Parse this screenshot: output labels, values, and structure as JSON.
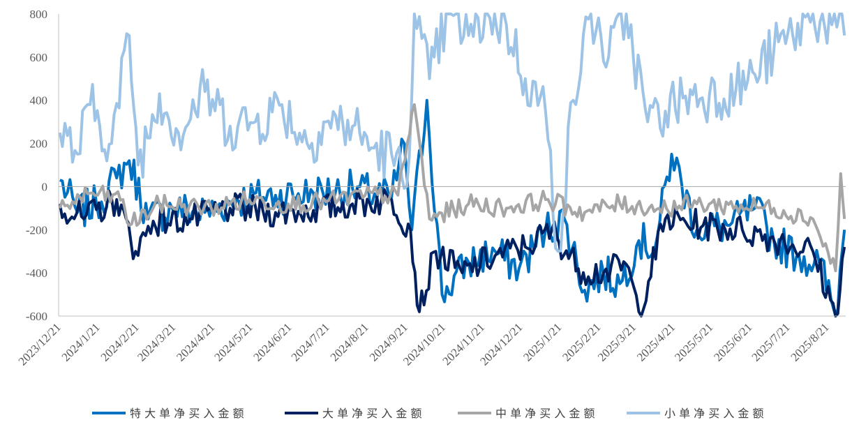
{
  "chart_data": {
    "type": "line",
    "title": "",
    "xlabel": "",
    "ylabel": "",
    "ylim": [
      -600,
      800
    ],
    "yticks": [
      -600,
      -400,
      -200,
      0,
      200,
      400,
      600,
      800
    ],
    "ytick_labels": [
      "-600",
      "-400",
      "-200",
      "0",
      "200",
      "400",
      "600",
      "800"
    ],
    "x_tick_labels": [
      "2023/12/21",
      "2024/1/21",
      "2024/2/21",
      "2024/3/21",
      "2024/4/21",
      "2024/5/21",
      "2024/6/21",
      "2024/7/21",
      "2024/8/21",
      "2024/9/21",
      "2024/10/21",
      "2024/11/21",
      "2024/12/21",
      "2025/1/21",
      "2025/2/21",
      "2025/3/21",
      "2025/4/21",
      "2025/5/21",
      "2025/6/21",
      "2025/7/21",
      "2025/8/21"
    ],
    "x_range": [
      "2023/12/21",
      "2025/9/5"
    ],
    "grid": false,
    "legend_position": "bottom",
    "series": [
      {
        "name": "特大单净买入金额",
        "color": "#0070C0",
        "description": "daily, mostly -200..50 before 2024/9/21; -600..450 after"
      },
      {
        "name": "大单净买入金额",
        "color": "#002060",
        "description": "daily, mostly -200..0 before 2024/9/21; -600..0 after"
      },
      {
        "name": "中单净买入金额",
        "color": "#A6A6A6",
        "description": "daily, mostly -150..0, peak ~380 near 2024/10/1"
      },
      {
        "name": "小单净买入金额",
        "color": "#9DC3E6",
        "description": "daily, mostly 0..450 before 2024/9/21; 0..800+ after"
      }
    ],
    "anchors": {
      "特大单净买入金额": [
        [
          "2023/12/22",
          30
        ],
        [
          "2024/1/5",
          -120
        ],
        [
          "2024/1/20",
          -80
        ],
        [
          "2024/2/5",
          40
        ],
        [
          "2024/2/15",
          120
        ],
        [
          "2024/3/1",
          -150
        ],
        [
          "2024/3/20",
          -100
        ],
        [
          "2024/4/15",
          -120
        ],
        [
          "2024/5/10",
          -60
        ],
        [
          "2024/6/10",
          -40
        ],
        [
          "2024/7/10",
          -30
        ],
        [
          "2024/8/10",
          -10
        ],
        [
          "2024/9/10",
          -50
        ],
        [
          "2024/9/20",
          200
        ],
        [
          "2024/9/26",
          -200
        ],
        [
          "2024/10/8",
          400
        ],
        [
          "2024/10/20",
          -500
        ],
        [
          "2024/11/10",
          -350
        ],
        [
          "2024/12/1",
          -300
        ],
        [
          "2024/12/20",
          -380
        ],
        [
          "2025/1/10",
          -200
        ],
        [
          "2025/1/25",
          -150
        ],
        [
          "2025/2/10",
          -480
        ],
        [
          "2025/2/25",
          -400
        ],
        [
          "2025/3/10",
          -450
        ],
        [
          "2025/3/25",
          -250
        ],
        [
          "2025/4/7",
          -280
        ],
        [
          "2025/4/20",
          150
        ],
        [
          "2025/5/10",
          -200
        ],
        [
          "2025/6/5",
          -180
        ],
        [
          "2025/6/25",
          -100
        ],
        [
          "2025/7/10",
          -250
        ],
        [
          "2025/7/30",
          -320
        ],
        [
          "2025/8/15",
          -350
        ],
        [
          "2025/8/28",
          -600
        ],
        [
          "2025/9/4",
          -200
        ]
      ],
      "大单净买入金额": [
        [
          "2023/12/22",
          -80
        ],
        [
          "2024/1/10",
          -150
        ],
        [
          "2024/2/5",
          -60
        ],
        [
          "2024/2/20",
          -300
        ],
        [
          "2024/3/5",
          -160
        ],
        [
          "2024/4/5",
          -150
        ],
        [
          "2024/5/5",
          -100
        ],
        [
          "2024/6/10",
          -120
        ],
        [
          "2024/7/10",
          -110
        ],
        [
          "2024/8/10",
          -80
        ],
        [
          "2024/9/10",
          -60
        ],
        [
          "2024/9/25",
          -200
        ],
        [
          "2024/10/2",
          -580
        ],
        [
          "2024/10/15",
          -300
        ],
        [
          "2024/11/5",
          -400
        ],
        [
          "2024/12/1",
          -320
        ],
        [
          "2024/12/25",
          -280
        ],
        [
          "2025/1/15",
          -200
        ],
        [
          "2025/2/5",
          -380
        ],
        [
          "2025/2/25",
          -400
        ],
        [
          "2025/3/15",
          -360
        ],
        [
          "2025/3/25",
          -580
        ],
        [
          "2025/4/15",
          -150
        ],
        [
          "2025/5/15",
          -180
        ],
        [
          "2025/6/15",
          -200
        ],
        [
          "2025/7/15",
          -250
        ],
        [
          "2025/8/10",
          -300
        ],
        [
          "2025/8/28",
          -600
        ],
        [
          "2025/9/4",
          -280
        ]
      ],
      "中单净买入金额": [
        [
          "2023/12/22",
          -100
        ],
        [
          "2024/1/15",
          -30
        ],
        [
          "2024/2/10",
          -60
        ],
        [
          "2024/2/15",
          -180
        ],
        [
          "2024/3/10",
          -80
        ],
        [
          "2024/4/20",
          -100
        ],
        [
          "2024/5/20",
          -60
        ],
        [
          "2024/6/20",
          -80
        ],
        [
          "2024/7/20",
          -70
        ],
        [
          "2024/8/20",
          -40
        ],
        [
          "2024/9/15",
          -40
        ],
        [
          "2024/9/28",
          380
        ],
        [
          "2024/10/10",
          -150
        ],
        [
          "2024/11/10",
          -80
        ],
        [
          "2024/12/10",
          -100
        ],
        [
          "2025/1/10",
          -60
        ],
        [
          "2025/2/10",
          -120
        ],
        [
          "2025/3/10",
          -80
        ],
        [
          "2025/4/10",
          -100
        ],
        [
          "2025/5/10",
          -80
        ],
        [
          "2025/6/10",
          -90
        ],
        [
          "2025/7/10",
          -100
        ],
        [
          "2025/8/10",
          -150
        ],
        [
          "2025/8/28",
          -390
        ],
        [
          "2025/9/1",
          60
        ],
        [
          "2025/9/4",
          -150
        ]
      ],
      "小单净买入金额": [
        [
          "2023/12/22",
          250
        ],
        [
          "2024/1/5",
          150
        ],
        [
          "2024/1/15",
          380
        ],
        [
          "2024/2/1",
          200
        ],
        [
          "2024/2/15",
          700
        ],
        [
          "2024/2/22",
          100
        ],
        [
          "2024/3/10",
          430
        ],
        [
          "2024/3/25",
          250
        ],
        [
          "2024/4/15",
          440
        ],
        [
          "2024/5/5",
          280
        ],
        [
          "2024/5/25",
          300
        ],
        [
          "2024/6/15",
          380
        ],
        [
          "2024/7/5",
          200
        ],
        [
          "2024/7/20",
          300
        ],
        [
          "2024/8/10",
          280
        ],
        [
          "2024/8/25",
          180
        ],
        [
          "2024/9/10",
          150
        ],
        [
          "2024/9/22",
          0
        ],
        [
          "2024/9/28",
          800
        ],
        [
          "2024/10/10",
          500
        ],
        [
          "2024/10/25",
          800
        ],
        [
          "2024/11/10",
          700
        ],
        [
          "2024/11/25",
          800
        ],
        [
          "2024/12/10",
          750
        ],
        [
          "2024/12/25",
          500
        ],
        [
          "2025/1/10",
          350
        ],
        [
          "2025/1/20",
          -300
        ],
        [
          "2025/2/1",
          400
        ],
        [
          "2025/2/15",
          800
        ],
        [
          "2025/3/1",
          600
        ],
        [
          "2025/3/15",
          800
        ],
        [
          "2025/4/1",
          300
        ],
        [
          "2025/4/15",
          350
        ],
        [
          "2025/5/1",
          420
        ],
        [
          "2025/5/20",
          430
        ],
        [
          "2025/6/10",
          450
        ],
        [
          "2025/6/25",
          520
        ],
        [
          "2025/7/10",
          630
        ],
        [
          "2025/7/25",
          700
        ],
        [
          "2025/8/10",
          800
        ],
        [
          "2025/8/25",
          750
        ],
        [
          "2025/9/4",
          700
        ]
      ]
    }
  }
}
